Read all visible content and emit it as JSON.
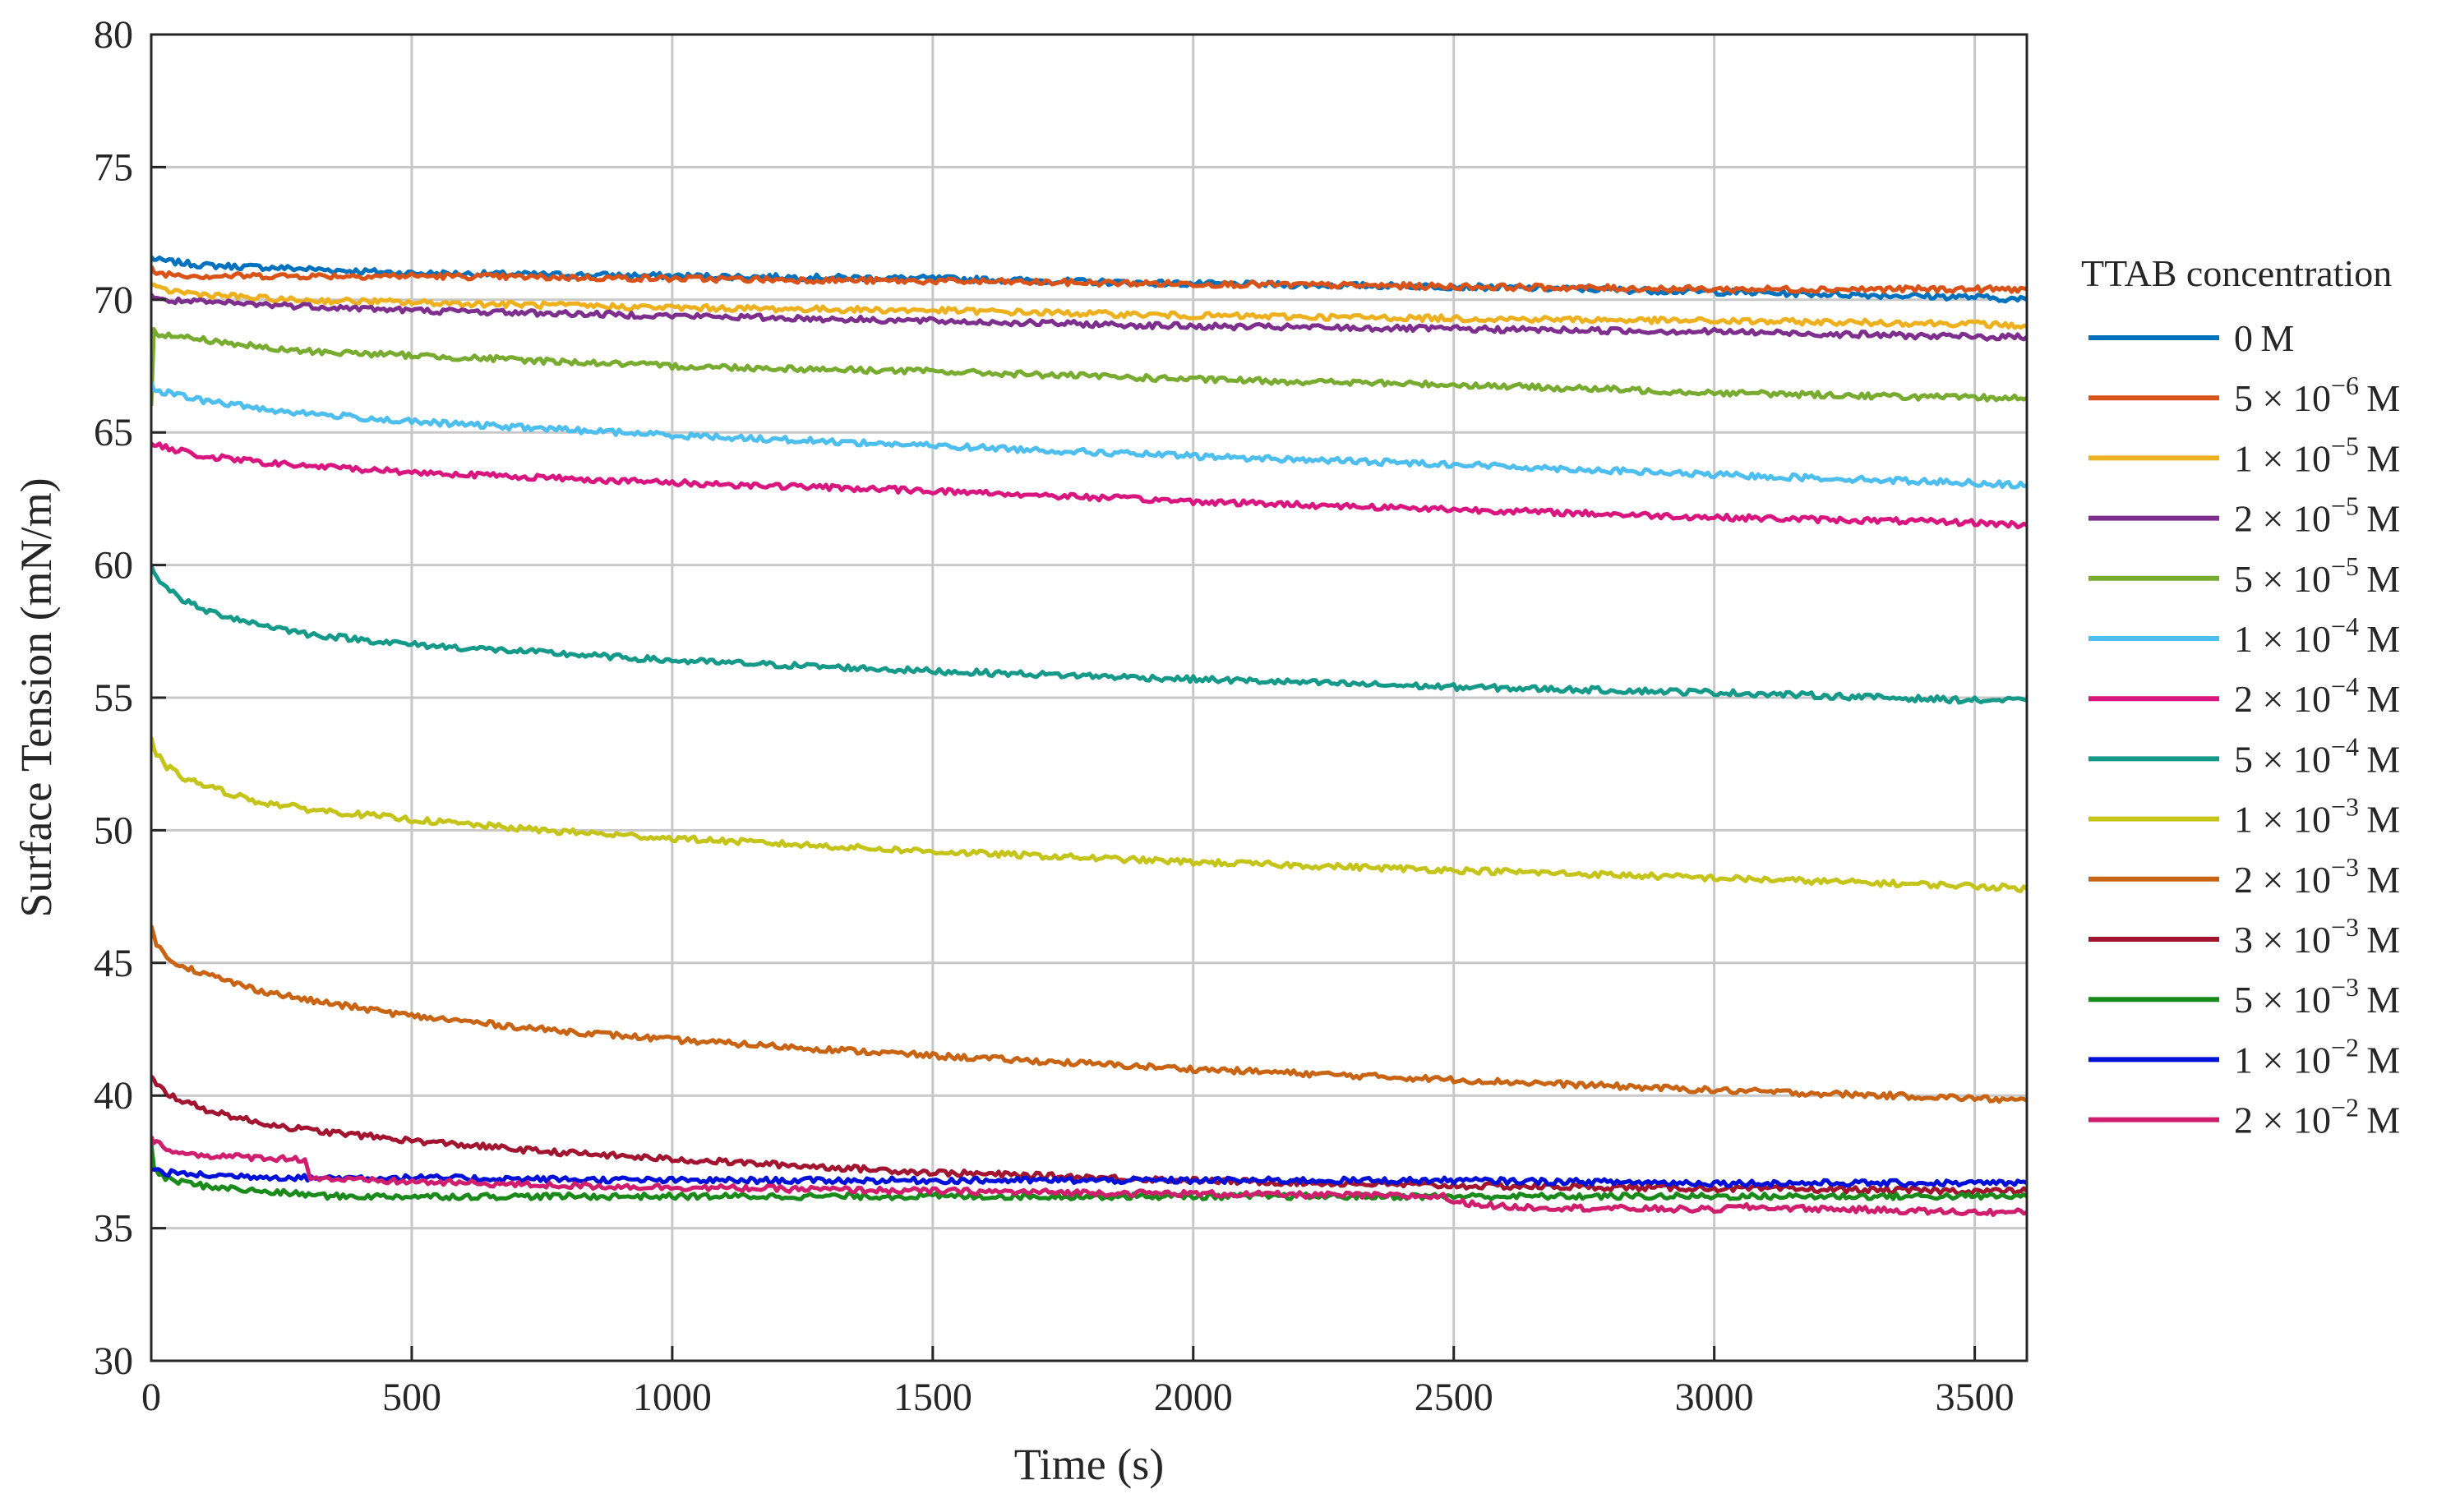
{
  "chart_data": {
    "type": "line",
    "title": "",
    "xlabel": "Time (s)",
    "ylabel": "Surface Tension (mN/m)",
    "xlim": [
      0,
      3600
    ],
    "ylim": [
      30,
      80
    ],
    "xticks": [
      0,
      500,
      1000,
      1500,
      2000,
      2500,
      3000,
      3500
    ],
    "yticks": [
      30,
      35,
      40,
      45,
      50,
      55,
      60,
      65,
      70,
      75,
      80
    ],
    "grid": true,
    "legend_title": "TTAB concentration",
    "legend_position": "outside-right",
    "series": [
      {
        "name": "0 M",
        "mantissa": "0",
        "exponent": "",
        "color": "#0072BD",
        "x": [
          0,
          10,
          100,
          250,
          500,
          1000,
          1500,
          2000,
          2500,
          3000,
          3500,
          3600
        ],
        "y": [
          71.6,
          71.5,
          71.3,
          71.2,
          71.0,
          70.9,
          70.8,
          70.6,
          70.5,
          70.3,
          70.1,
          70.0
        ]
      },
      {
        "name": "5 × 10−6 M",
        "mantissa": "5",
        "exponent": "−6",
        "color": "#D95319",
        "x": [
          0,
          10,
          100,
          250,
          500,
          1000,
          1500,
          2000,
          2500,
          3000,
          3500,
          3600
        ],
        "y": [
          71.2,
          71.0,
          70.9,
          70.9,
          70.9,
          70.8,
          70.7,
          70.6,
          70.5,
          70.4,
          70.4,
          70.4
        ]
      },
      {
        "name": "1 × 10−5 M",
        "mantissa": "1",
        "exponent": "−5",
        "color": "#EDB120",
        "x": [
          0,
          10,
          100,
          250,
          500,
          1000,
          1500,
          2000,
          2500,
          3000,
          3500,
          3600
        ],
        "y": [
          70.6,
          70.4,
          70.2,
          70.0,
          69.9,
          69.7,
          69.6,
          69.4,
          69.3,
          69.2,
          69.1,
          69.0
        ]
      },
      {
        "name": "2 × 10−5 M",
        "mantissa": "2",
        "exponent": "−5",
        "color": "#7E2F8E",
        "x": [
          0,
          10,
          100,
          250,
          500,
          1000,
          1500,
          2000,
          2500,
          3000,
          3500,
          3600
        ],
        "y": [
          70.2,
          70.0,
          69.9,
          69.8,
          69.6,
          69.4,
          69.2,
          69.0,
          68.9,
          68.8,
          68.6,
          68.6
        ]
      },
      {
        "name": "5 × 10−5 M",
        "mantissa": "5",
        "exponent": "−5",
        "color": "#77AC30",
        "x": [
          0,
          5,
          15,
          100,
          250,
          500,
          1000,
          1500,
          2000,
          2500,
          3000,
          3500,
          3600
        ],
        "y": [
          66.0,
          68.9,
          68.7,
          68.5,
          68.1,
          67.9,
          67.5,
          67.3,
          67.0,
          66.8,
          66.5,
          66.3,
          66.3
        ]
      },
      {
        "name": "1 × 10−4 M",
        "mantissa": "1",
        "exponent": "−4",
        "color": "#4DBEEE",
        "x": [
          0,
          10,
          50,
          100,
          250,
          500,
          1000,
          1500,
          2000,
          2500,
          3000,
          3500,
          3600
        ],
        "y": [
          66.8,
          66.6,
          66.4,
          66.2,
          65.8,
          65.4,
          64.9,
          64.5,
          64.1,
          63.8,
          63.4,
          63.1,
          63.0
        ]
      },
      {
        "name": "2 × 10−4 M",
        "mantissa": "2",
        "exponent": "−4",
        "color": "#D9157F",
        "x": [
          0,
          10,
          100,
          250,
          500,
          1000,
          1500,
          2000,
          2500,
          3000,
          3500,
          3600
        ],
        "y": [
          64.6,
          64.5,
          64.1,
          63.8,
          63.5,
          63.1,
          62.8,
          62.4,
          62.1,
          61.8,
          61.6,
          61.5
        ]
      },
      {
        "name": "5 × 10−4 M",
        "mantissa": "5",
        "exponent": "−4",
        "color": "#159A8A",
        "x": [
          0,
          10,
          30,
          60,
          100,
          200,
          300,
          500,
          750,
          1000,
          1500,
          2000,
          2500,
          3000,
          3500,
          3600
        ],
        "y": [
          60.0,
          59.6,
          59.1,
          58.7,
          58.3,
          57.8,
          57.4,
          57.0,
          56.7,
          56.4,
          56.0,
          55.7,
          55.4,
          55.2,
          54.9,
          54.9
        ]
      },
      {
        "name": "1 × 10−3 M",
        "mantissa": "1",
        "exponent": "−3",
        "color": "#C4C41A",
        "x": [
          0,
          10,
          30,
          60,
          100,
          200,
          300,
          500,
          750,
          1000,
          1500,
          2000,
          2500,
          3000,
          3500,
          3600
        ],
        "y": [
          53.4,
          52.9,
          52.4,
          52.0,
          51.7,
          51.1,
          50.8,
          50.4,
          50.0,
          49.7,
          49.2,
          48.8,
          48.5,
          48.2,
          47.9,
          47.8
        ]
      },
      {
        "name": "2 × 10−3 M",
        "mantissa": "2",
        "exponent": "−3",
        "color": "#C86414",
        "x": [
          0,
          10,
          30,
          60,
          100,
          200,
          300,
          500,
          750,
          1000,
          1500,
          2000,
          2500,
          3000,
          3500,
          3600
        ],
        "y": [
          46.4,
          45.7,
          45.2,
          44.9,
          44.6,
          44.0,
          43.6,
          43.0,
          42.5,
          42.1,
          41.5,
          41.0,
          40.6,
          40.2,
          39.9,
          39.8
        ]
      },
      {
        "name": "3 × 10−3 M",
        "mantissa": "3",
        "exponent": "−3",
        "color": "#A2142F",
        "x": [
          0,
          10,
          30,
          60,
          100,
          200,
          300,
          500,
          750,
          1000,
          1500,
          2000,
          2500,
          3000,
          3500,
          3600
        ],
        "y": [
          40.7,
          40.4,
          40.1,
          39.8,
          39.5,
          39.0,
          38.7,
          38.3,
          37.9,
          37.6,
          37.1,
          36.8,
          36.6,
          36.5,
          36.4,
          36.4
        ]
      },
      {
        "name": "5 × 10−3 M",
        "mantissa": "5",
        "exponent": "−3",
        "color": "#1A8A1A",
        "x": [
          0,
          5,
          15,
          40,
          100,
          200,
          350,
          500,
          1000,
          1500,
          2000,
          2500,
          3000,
          3500,
          3600
        ],
        "y": [
          38.2,
          37.4,
          37.0,
          36.8,
          36.6,
          36.4,
          36.2,
          36.2,
          36.2,
          36.2,
          36.2,
          36.2,
          36.2,
          36.2,
          36.2
        ]
      },
      {
        "name": "1 × 10−2 M",
        "mantissa": "1",
        "exponent": "−2",
        "color": "#0010D9",
        "x": [
          0,
          20,
          100,
          300,
          500,
          1000,
          1500,
          2000,
          2500,
          3000,
          3500,
          3600
        ],
        "y": [
          37.3,
          37.1,
          37.0,
          36.9,
          36.9,
          36.8,
          36.8,
          36.8,
          36.8,
          36.7,
          36.7,
          36.7
        ]
      },
      {
        "name": "2 × 10−2 M",
        "mantissa": "2",
        "exponent": "−2",
        "color": "#D01E6E",
        "x": [
          0,
          10,
          60,
          150,
          295,
          305,
          400,
          800,
          1500,
          2000,
          2480,
          2500,
          2600,
          3000,
          3050,
          3500,
          3600
        ],
        "y": [
          38.4,
          38.2,
          37.8,
          37.7,
          37.6,
          36.9,
          36.8,
          36.6,
          36.4,
          36.3,
          36.2,
          36.0,
          35.8,
          35.7,
          35.8,
          35.6,
          35.6
        ]
      }
    ]
  }
}
